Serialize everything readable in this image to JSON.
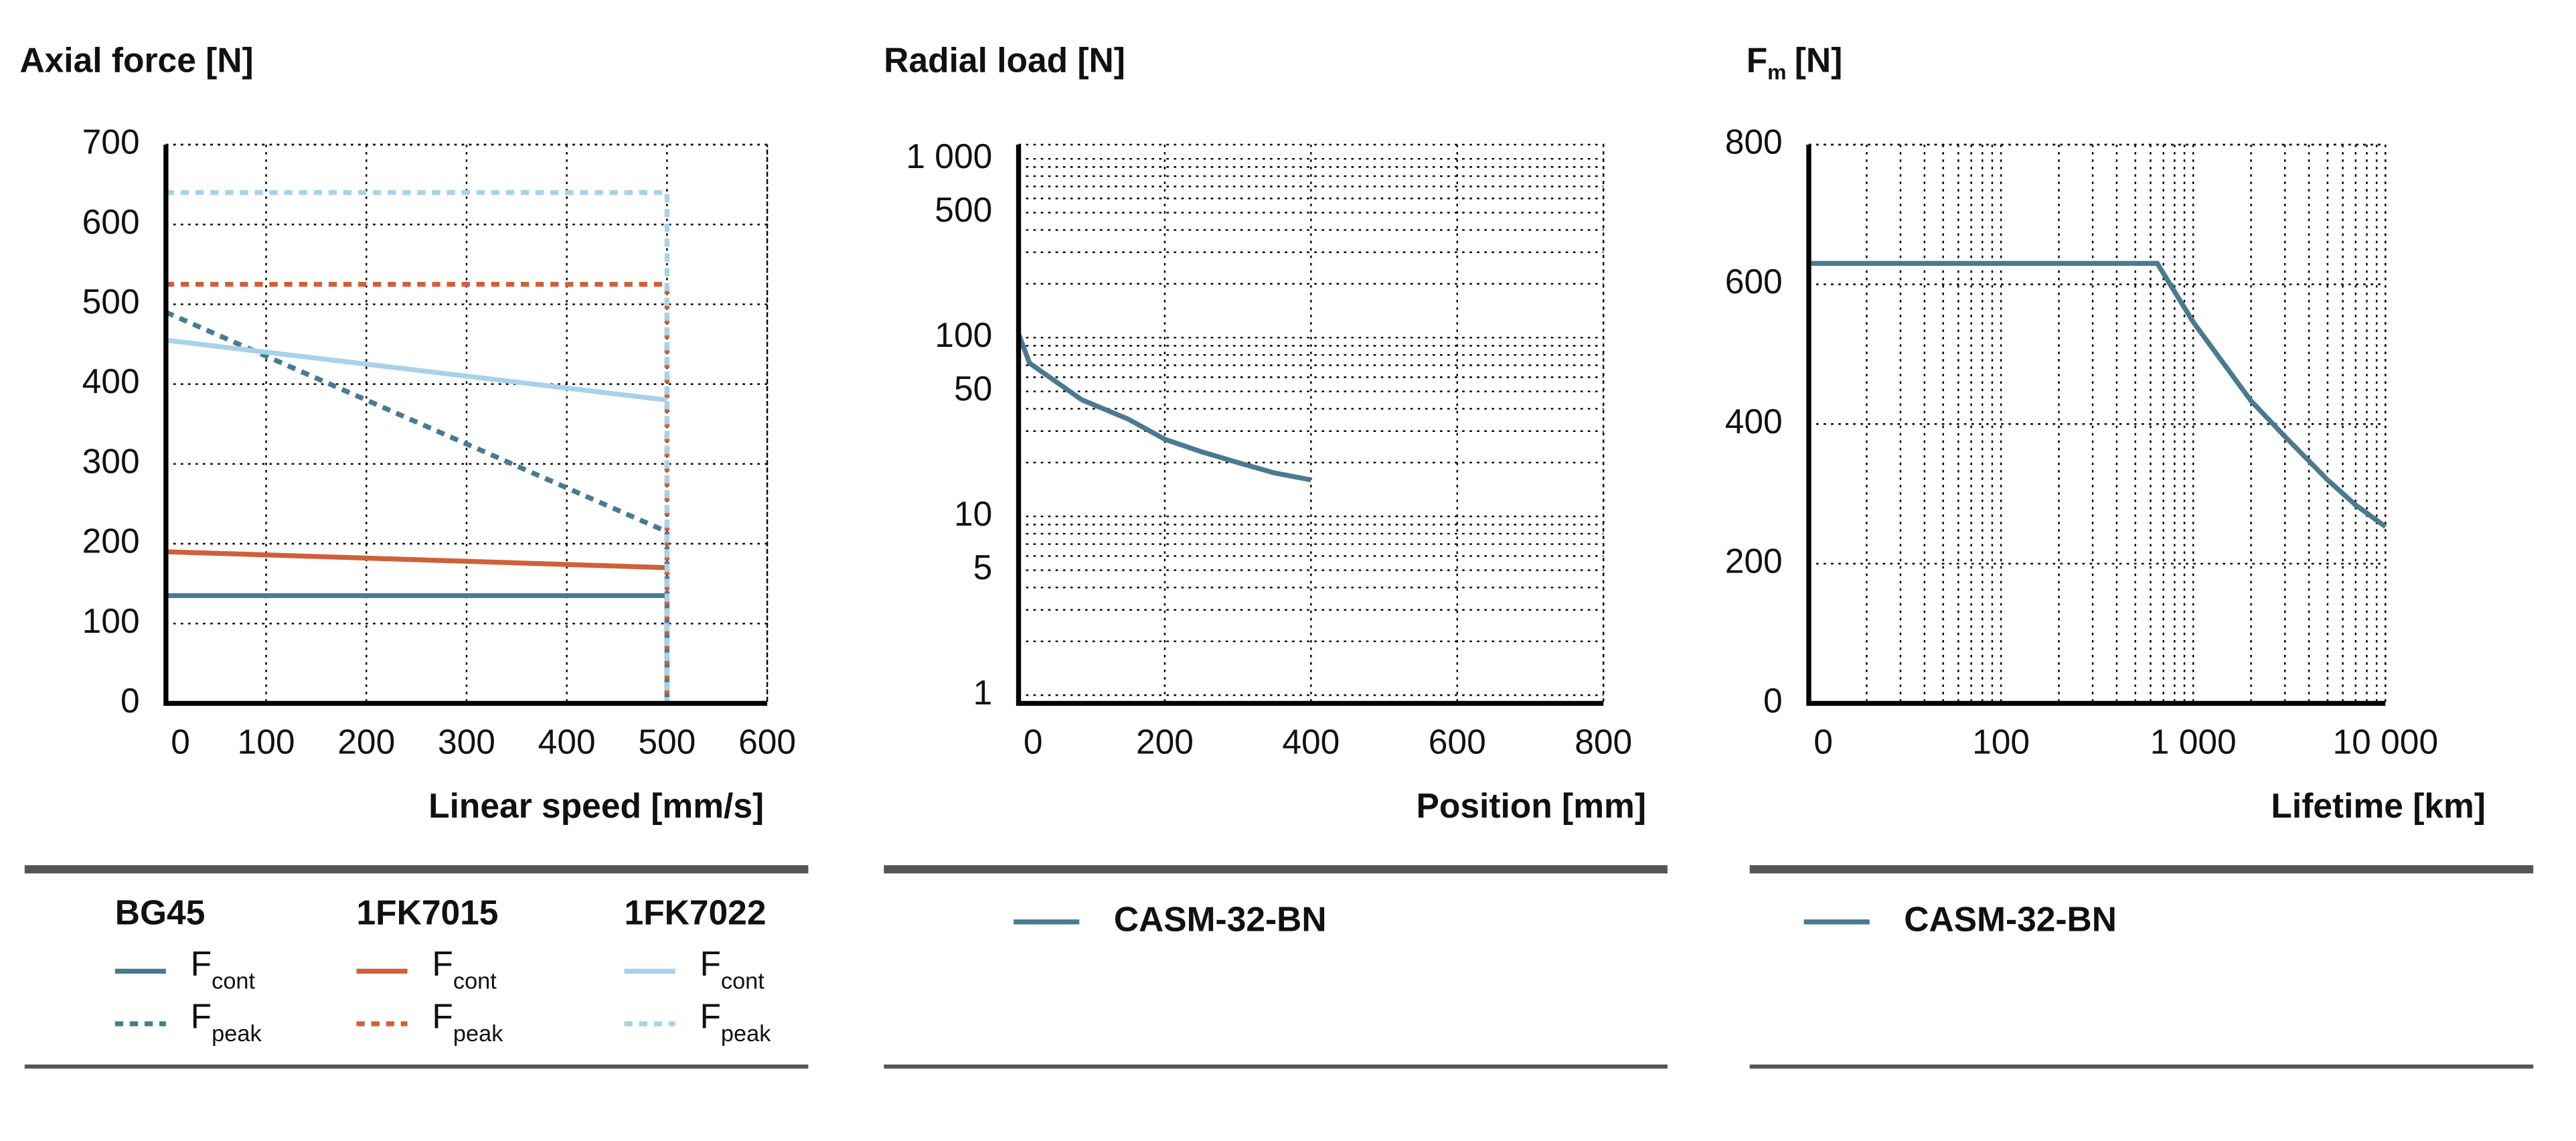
{
  "chart_data": [
    {
      "type": "line",
      "title": "Axial force [N]",
      "x_label": "Linear speed [mm/s]",
      "xlim": [
        0,
        600
      ],
      "xticks": [
        0,
        100,
        200,
        300,
        400,
        500,
        600
      ],
      "ylim": [
        0,
        700
      ],
      "yticks": [
        0,
        100,
        200,
        300,
        400,
        500,
        600,
        700
      ],
      "grid": true,
      "series_groups": [
        {
          "name": "BG45",
          "color": "#4a7a8f",
          "series": [
            {
              "name": "F",
              "subscript": "cont",
              "dashed": false,
              "x": [
                0,
                500,
                500
              ],
              "values": [
                135,
                135,
                0
              ]
            },
            {
              "name": "F",
              "subscript": "peak",
              "dashed": true,
              "x": [
                0,
                500,
                500
              ],
              "values": [
                490,
                215,
                0
              ]
            }
          ]
        },
        {
          "name": "1FK7015",
          "color": "#d0603a",
          "series": [
            {
              "name": "F",
              "subscript": "cont",
              "dashed": false,
              "x": [
                0,
                500
              ],
              "values": [
                190,
                170
              ]
            },
            {
              "name": "F",
              "subscript": "peak",
              "dashed": true,
              "x": [
                0,
                500,
                500
              ],
              "values": [
                525,
                525,
                0
              ]
            }
          ]
        },
        {
          "name": "1FK7022",
          "color": "#a9d2e8",
          "series": [
            {
              "name": "F",
              "subscript": "cont",
              "dashed": false,
              "x": [
                0,
                500
              ],
              "values": [
                455,
                380
              ]
            },
            {
              "name": "F",
              "subscript": "peak",
              "dashed": true,
              "x": [
                0,
                500,
                500
              ],
              "values": [
                640,
                640,
                0
              ]
            }
          ]
        }
      ]
    },
    {
      "type": "line",
      "title": "Radial load [N]",
      "x_label": "Position [mm]",
      "xlim": [
        0,
        800
      ],
      "xticks": [
        0,
        200,
        400,
        600,
        800
      ],
      "y_log": true,
      "ylim": [
        0.9,
        1200
      ],
      "yticks": [
        1,
        5,
        10,
        50,
        100,
        500,
        {
          "value": 1000,
          "label": "1 000"
        }
      ],
      "minor_yticks": [
        2,
        3,
        4,
        6,
        7,
        8,
        9,
        20,
        30,
        40,
        60,
        70,
        80,
        90,
        200,
        300,
        400,
        600,
        700,
        800,
        900
      ],
      "grid": true,
      "series": [
        {
          "name": "CASM-32-BN",
          "color": "#4a7a8f",
          "x": [
            0,
            15,
            86,
            150,
            200,
            250,
            300,
            350,
            400
          ],
          "values": [
            105,
            72,
            45,
            35,
            27,
            23,
            20,
            17.5,
            16
          ]
        }
      ]
    },
    {
      "type": "line",
      "title": "F",
      "title_subscript": "m",
      "title_suffix": "[N]",
      "x_label": "Lifetime [km]",
      "x_log": true,
      "xlim": [
        10,
        10000
      ],
      "xticks": [
        {
          "value": 10,
          "label": "0"
        },
        100,
        {
          "value": 1000,
          "label": "1 000"
        },
        {
          "value": 10000,
          "label": "10 000"
        }
      ],
      "minor_xticks": [
        20,
        30,
        40,
        50,
        60,
        70,
        80,
        90,
        200,
        300,
        400,
        500,
        600,
        700,
        800,
        900,
        2000,
        3000,
        4000,
        5000,
        6000,
        7000,
        8000,
        9000
      ],
      "ylim": [
        0,
        800
      ],
      "yticks": [
        0,
        200,
        400,
        600,
        800
      ],
      "grid": true,
      "series": [
        {
          "name": "CASM-32-BN",
          "color": "#4a7a8f",
          "x": [
            10,
            650,
            1000,
            2000,
            3000,
            5000,
            7000,
            10000
          ],
          "values": [
            630,
            630,
            546,
            433,
            382,
            320,
            284,
            253
          ]
        }
      ]
    }
  ]
}
